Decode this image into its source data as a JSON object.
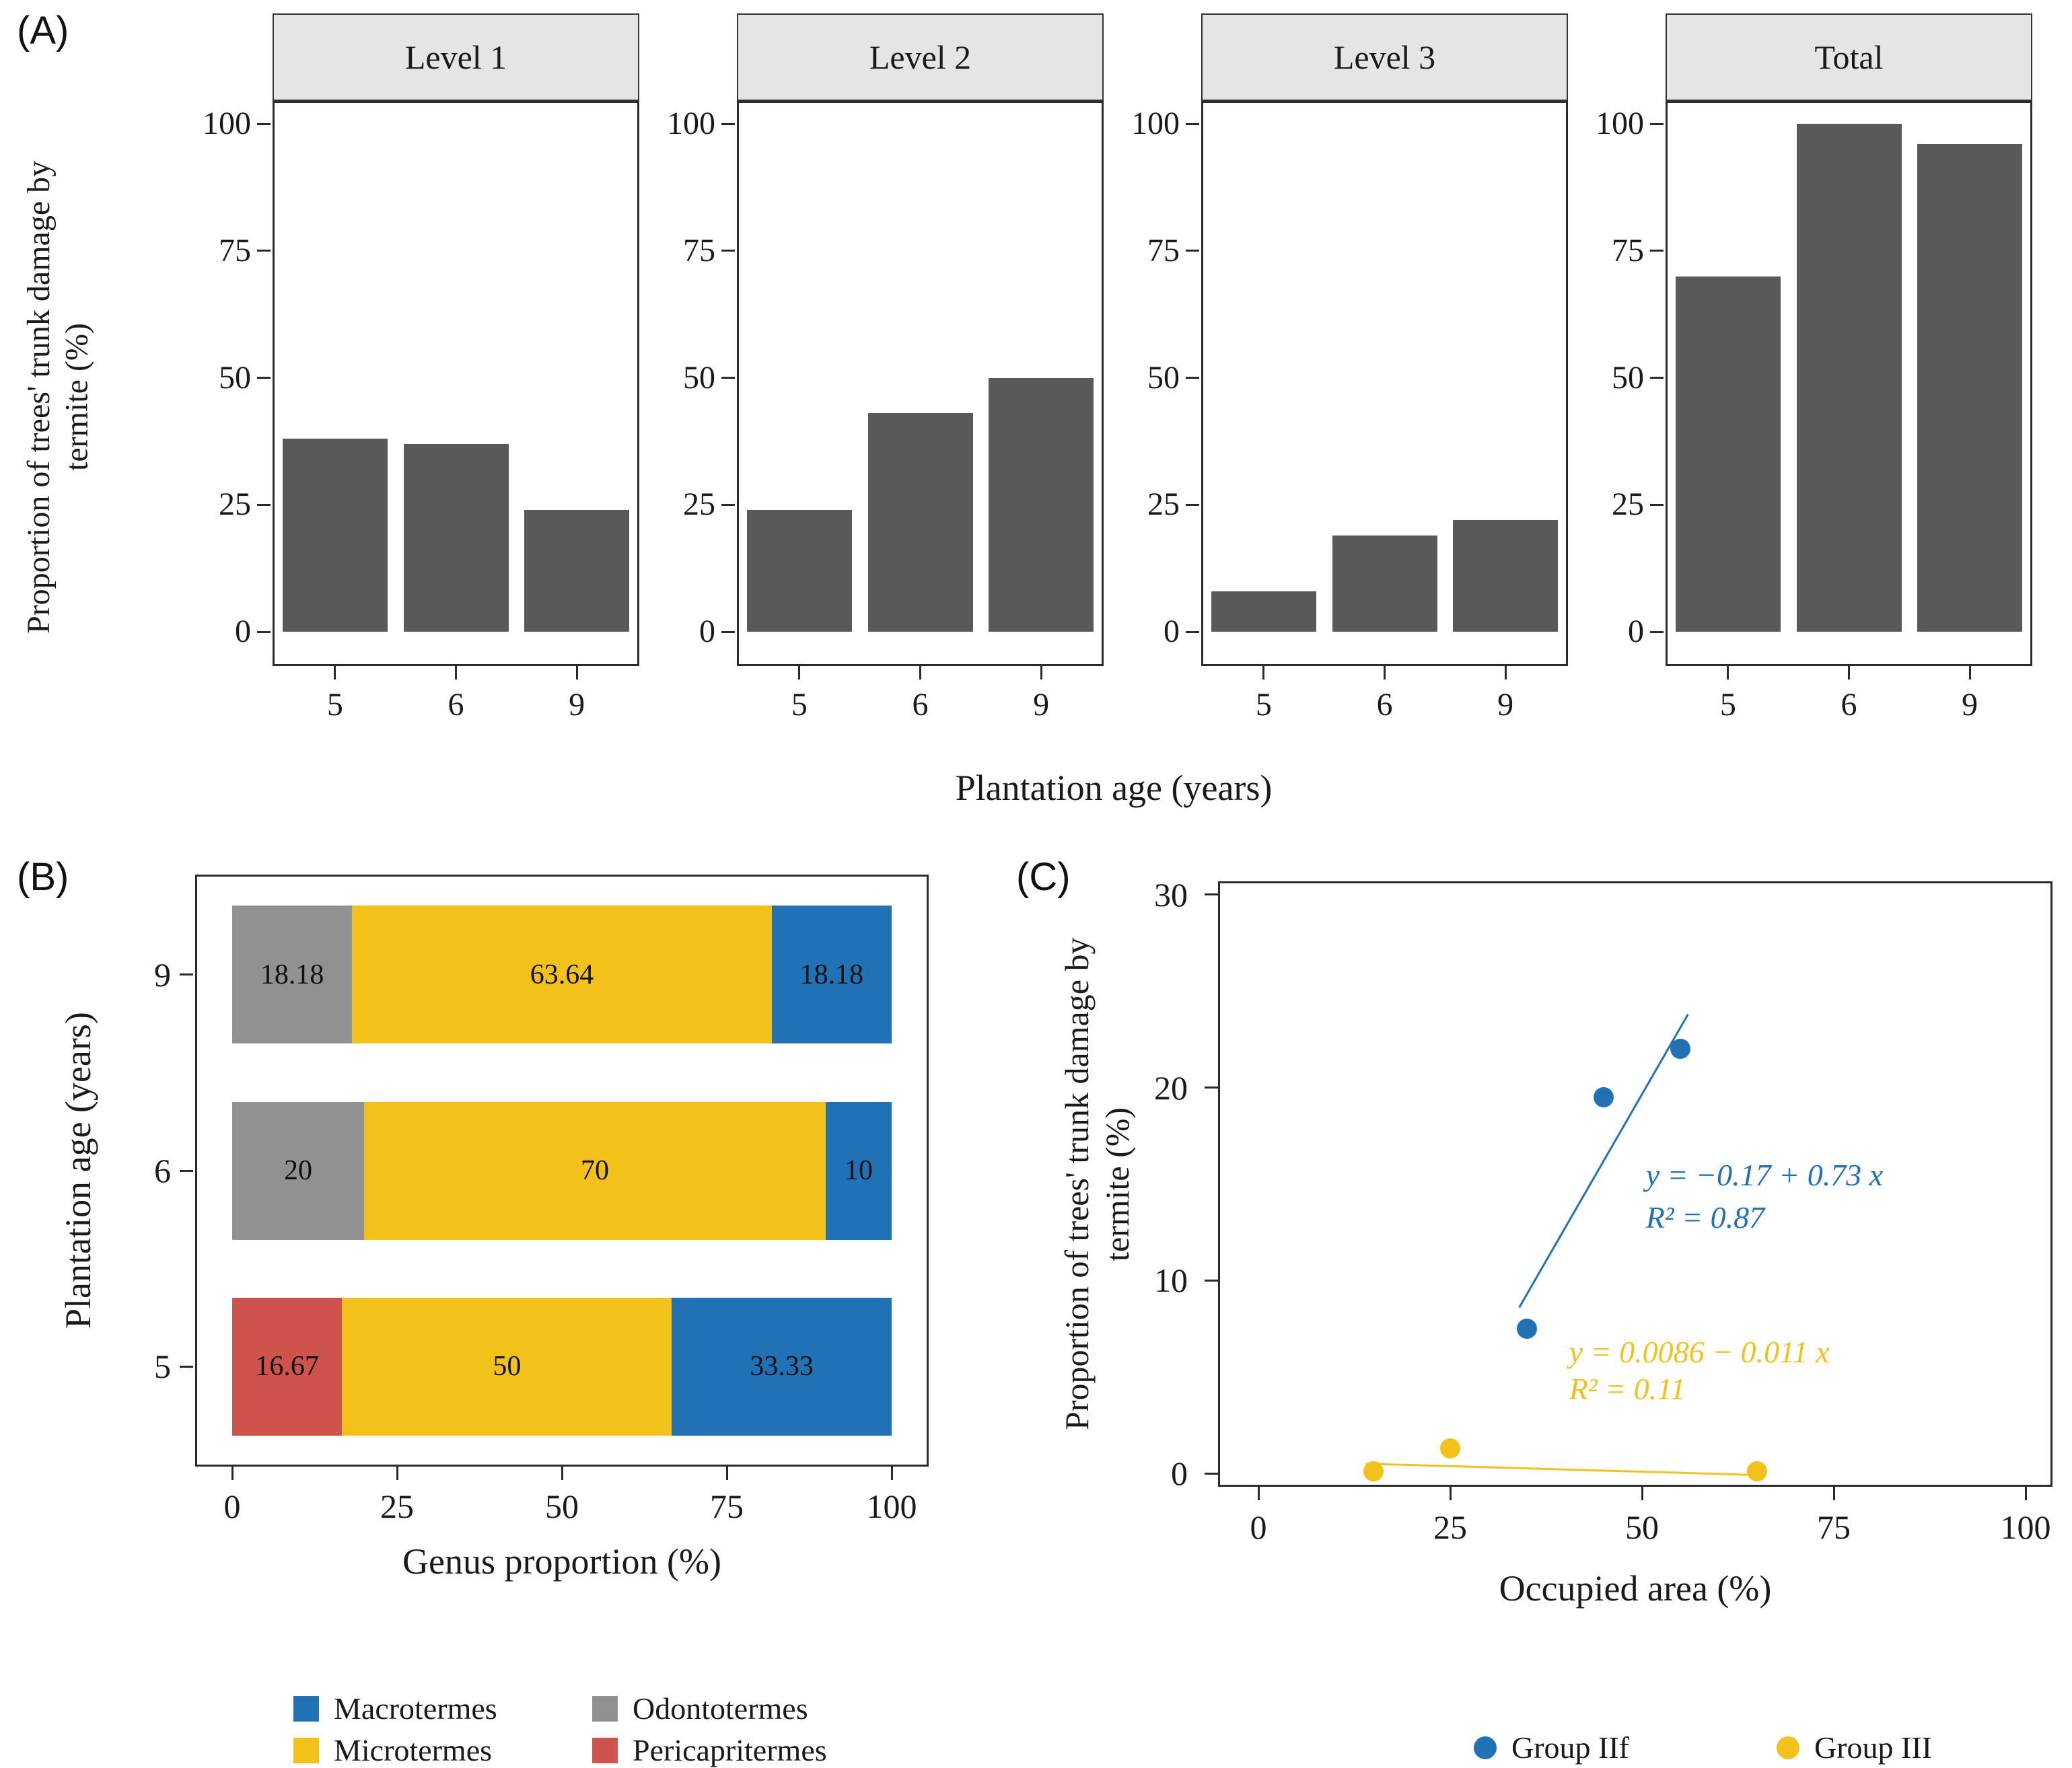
{
  "chart_data": [
    {
      "id": "panel-a",
      "panel_label": "(A)",
      "type": "bar",
      "facets": [
        "Level 1",
        "Level 2",
        "Level 3",
        "Total"
      ],
      "categories": [
        "5",
        "6",
        "9"
      ],
      "series": [
        {
          "name": "Level 1",
          "values": [
            38,
            37,
            24
          ]
        },
        {
          "name": "Level 2",
          "values": [
            24,
            43,
            50
          ]
        },
        {
          "name": "Level 3",
          "values": [
            8,
            19,
            22
          ]
        },
        {
          "name": "Total",
          "values": [
            70,
            100,
            96
          ]
        }
      ],
      "xlabel": "Plantation age (years)",
      "ylabel": "Proportion of trees' trunk damage by termite (%)",
      "yticks": [
        0,
        25,
        50,
        75,
        100
      ],
      "ylim": [
        0,
        105
      ],
      "bar_color": "#595959",
      "strip_bg": "#E5E5E5"
    },
    {
      "id": "panel-b",
      "panel_label": "(B)",
      "type": "stacked-bar-horizontal",
      "xlabel": "Genus proportion (%)",
      "ylabel": "Plantation age (years)",
      "xticks": [
        0,
        25,
        50,
        75,
        100
      ],
      "xlim": [
        0,
        100
      ],
      "rows": [
        {
          "age": "9",
          "segments": [
            {
              "genus": "Odontotermes",
              "value": 18.18,
              "label": "18.18"
            },
            {
              "genus": "Microtermes",
              "value": 63.64,
              "label": "63.64"
            },
            {
              "genus": "Macrotermes",
              "value": 18.18,
              "label": "18.18"
            }
          ]
        },
        {
          "age": "6",
          "segments": [
            {
              "genus": "Odontotermes",
              "value": 20,
              "label": "20"
            },
            {
              "genus": "Microtermes",
              "value": 70,
              "label": "70"
            },
            {
              "genus": "Macrotermes",
              "value": 10,
              "label": "10"
            }
          ]
        },
        {
          "age": "5",
          "segments": [
            {
              "genus": "Pericapritermes",
              "value": 16.67,
              "label": "16.67"
            },
            {
              "genus": "Microtermes",
              "value": 50,
              "label": "50"
            },
            {
              "genus": "Macrotermes",
              "value": 33.33,
              "label": "33.33"
            }
          ]
        }
      ],
      "colors": {
        "Macrotermes": "#2171B5",
        "Microtermes": "#F2C21A",
        "Odontotermes": "#919191",
        "Pericapritermes": "#CD534C"
      },
      "legend": [
        {
          "name": "Macrotermes"
        },
        {
          "name": "Microtermes"
        },
        {
          "name": "Odontotermes"
        },
        {
          "name": "Pericapritermes"
        }
      ]
    },
    {
      "id": "panel-c",
      "panel_label": "(C)",
      "type": "scatter",
      "xlabel": "Occupied area (%)",
      "ylabel": "Proportion of trees' trunk damage by termite (%)",
      "xticks": [
        0,
        25,
        50,
        75,
        100
      ],
      "yticks": [
        0,
        10,
        20,
        30
      ],
      "xlim": [
        -5,
        105
      ],
      "ylim": [
        -1,
        30.5
      ],
      "series": [
        {
          "name": "Group IIf",
          "color": "#2171B5",
          "points": [
            [
              35,
              7.5
            ],
            [
              45,
              19.5
            ],
            [
              55,
              22
            ]
          ],
          "fit_line": {
            "x1": 34,
            "y1": 8.6,
            "x2": 56,
            "y2": 23.8
          },
          "annotations": [
            {
              "text": "y = −0.17 + 0.73 x",
              "x": 50.5,
              "y": 15.5
            },
            {
              "text": "R² = 0.87",
              "x": 50.5,
              "y": 13.3
            }
          ]
        },
        {
          "name": "Group III",
          "color": "#F2C21A",
          "points": [
            [
              15,
              0.1
            ],
            [
              25,
              1.3
            ],
            [
              65,
              0.1
            ]
          ],
          "fit_line": {
            "x1": 14,
            "y1": 0.5,
            "x2": 66,
            "y2": -0.1
          },
          "annotations": [
            {
              "text": "y = 0.0086 − 0.011 x",
              "x": 40.5,
              "y": 6.3
            },
            {
              "text": "R² = 0.11",
              "x": 40.5,
              "y": 4.4
            }
          ]
        }
      ],
      "legend": [
        {
          "name": "Group IIf"
        },
        {
          "name": "Group III"
        }
      ]
    }
  ]
}
